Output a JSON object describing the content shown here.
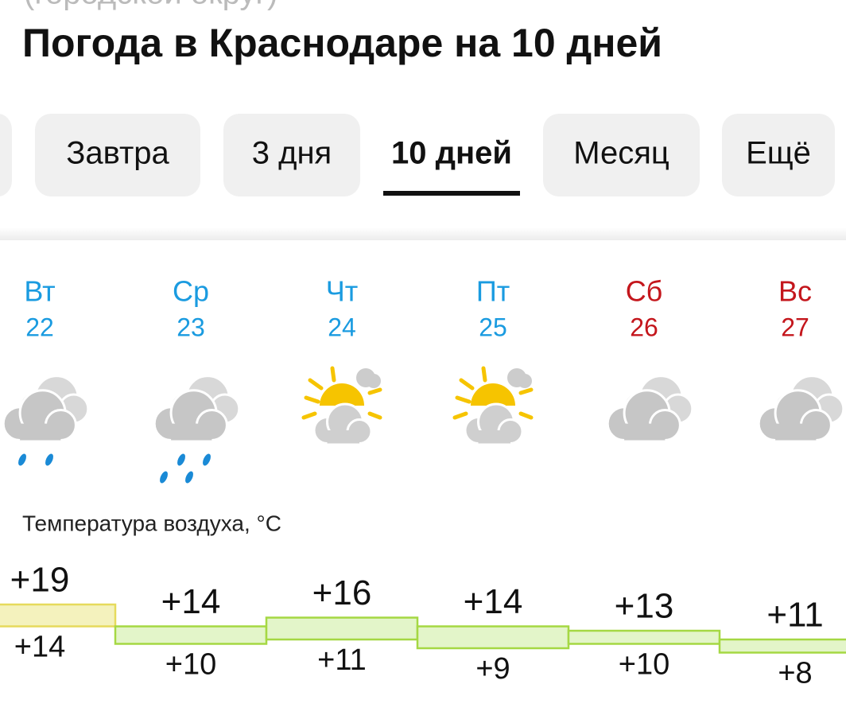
{
  "header": {
    "subtitle_cut": "(городской округ)",
    "title": "Погода в Краснодаре на 10 дней"
  },
  "tabs": [
    {
      "label": "Завтра",
      "active": false
    },
    {
      "label": "3 дня",
      "active": false
    },
    {
      "label": "10 дней",
      "active": true
    },
    {
      "label": "Месяц",
      "active": false
    },
    {
      "label": "Ещё",
      "active": false
    }
  ],
  "days": [
    {
      "weekday": "Вт",
      "date": 22,
      "weekend": false,
      "icon": "rain"
    },
    {
      "weekday": "Ср",
      "date": 23,
      "weekend": false,
      "icon": "heavy-rain"
    },
    {
      "weekday": "Чт",
      "date": 24,
      "weekend": false,
      "icon": "partly-cloudy"
    },
    {
      "weekday": "Пт",
      "date": 25,
      "weekend": false,
      "icon": "partly-cloudy"
    },
    {
      "weekday": "Сб",
      "date": 26,
      "weekend": true,
      "icon": "cloudy"
    },
    {
      "weekday": "Вс",
      "date": 27,
      "weekend": true,
      "icon": "cloudy"
    }
  ],
  "temperature": {
    "label": "Температура воздуха, °С",
    "max": {
      "values": [
        19,
        14,
        16,
        14,
        13,
        11
      ],
      "value_labels": [
        "+19",
        "+14",
        "+16",
        "+14",
        "+13",
        "+11"
      ]
    },
    "min": {
      "values": [
        14,
        10,
        11,
        9,
        10,
        8
      ],
      "value_labels": [
        "+14",
        "+10",
        "+11",
        "+9",
        "+10",
        "+8"
      ]
    },
    "fill_colors": [
      "#f4f2bd",
      "#e3f5c9",
      "#e3f5c9",
      "#e3f5c9",
      "#e3f5c9",
      "#e3f5c9"
    ],
    "stroke_colors": [
      "#e6da5c",
      "#a5d843",
      "#a5d843",
      "#a5d843",
      "#a5d843",
      "#a5d843"
    ]
  }
}
